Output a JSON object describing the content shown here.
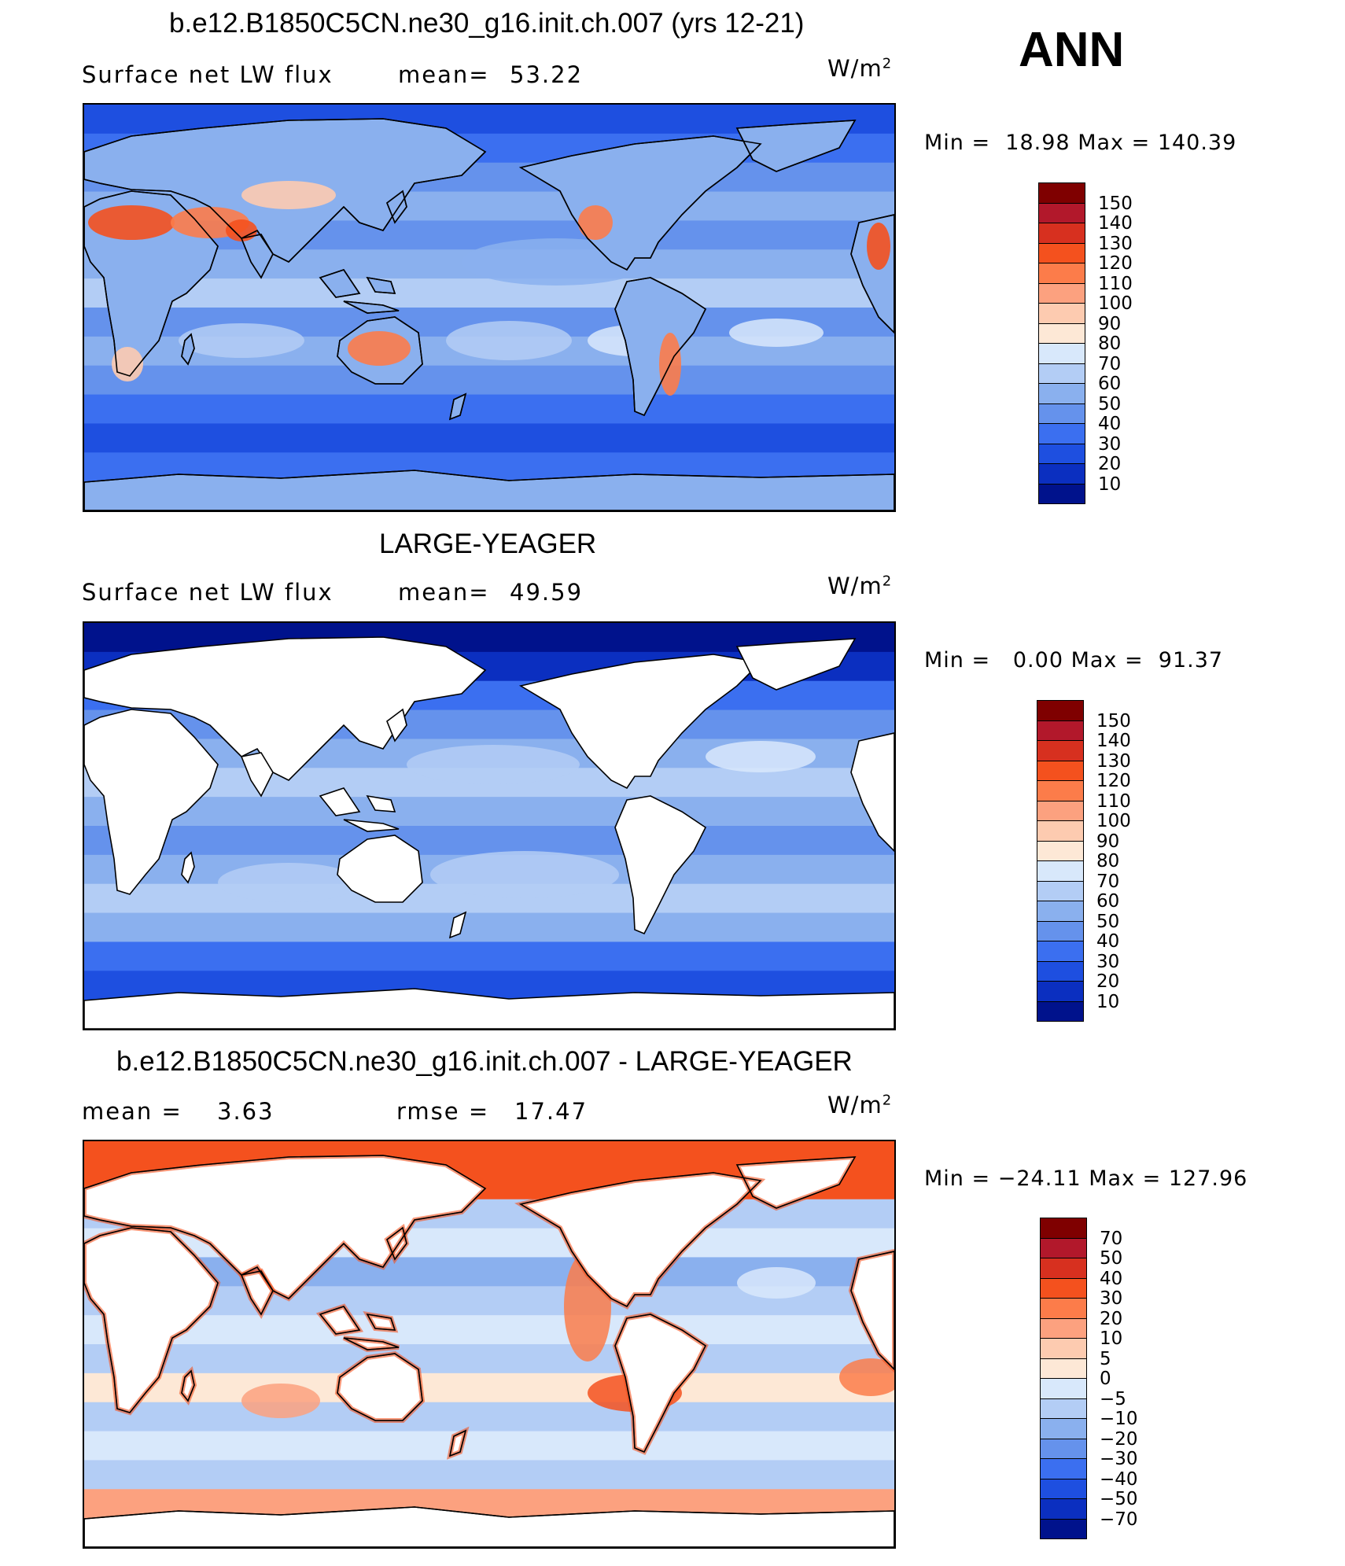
{
  "season": "ANN",
  "panels": [
    {
      "title": "b.e12.B1850C5CN.ne30_g16.init.ch.007 (yrs 12-21)",
      "left_label": "Surface net LW flux",
      "stat_label": "mean=",
      "stat_value": "53.22",
      "units": "W/m",
      "units_sup": "2",
      "min_label": "Min =",
      "min_value": "18.98",
      "max_label": "Max =",
      "max_value": "140.39",
      "colorbar": {
        "labels": [
          "150",
          "140",
          "130",
          "120",
          "110",
          "100",
          "90",
          "80",
          "70",
          "60",
          "50",
          "40",
          "30",
          "20",
          "10"
        ],
        "colors": [
          "#7f0000",
          "#b2182b",
          "#d7301f",
          "#f4511e",
          "#fc7c4a",
          "#fca17f",
          "#fdcbb0",
          "#fde8d6",
          "#d8e8fb",
          "#b3cdf5",
          "#8ab0ee",
          "#6592ec",
          "#3b6ff0",
          "#1e4fe0",
          "#0b2fc0",
          "#00128c"
        ]
      },
      "field": "model"
    },
    {
      "title": "LARGE-YEAGER",
      "left_label": "Surface net LW flux",
      "stat_label": "mean=",
      "stat_value": "49.59",
      "units": "W/m",
      "units_sup": "2",
      "min_label": "Min =",
      "min_value": "0.00",
      "max_label": "Max =",
      "max_value": "91.37",
      "colorbar": {
        "labels": [
          "150",
          "140",
          "130",
          "120",
          "110",
          "100",
          "90",
          "80",
          "70",
          "60",
          "50",
          "40",
          "30",
          "20",
          "10"
        ],
        "colors": [
          "#7f0000",
          "#b2182b",
          "#d7301f",
          "#f4511e",
          "#fc7c4a",
          "#fca17f",
          "#fdcbb0",
          "#fde8d6",
          "#d8e8fb",
          "#b3cdf5",
          "#8ab0ee",
          "#6592ec",
          "#3b6ff0",
          "#1e4fe0",
          "#0b2fc0",
          "#00128c"
        ]
      },
      "field": "obs"
    },
    {
      "title": "b.e12.B1850C5CN.ne30_g16.init.ch.007 - LARGE-YEAGER",
      "left_label": "mean =",
      "left_value": "3.63",
      "stat_label": "rmse =",
      "stat_value": "17.47",
      "units": "W/m",
      "units_sup": "2",
      "min_label": "Min =",
      "min_value": "−24.11",
      "max_label": "Max =",
      "max_value": "127.96",
      "colorbar": {
        "labels": [
          "70",
          "50",
          "40",
          "30",
          "20",
          "10",
          "5",
          "0",
          "−5",
          "−10",
          "−20",
          "−30",
          "−40",
          "−50",
          "−70"
        ],
        "colors": [
          "#7f0000",
          "#b2182b",
          "#d7301f",
          "#f4511e",
          "#fc7c4a",
          "#fca17f",
          "#fdcbb0",
          "#fde8d6",
          "#d8e8fb",
          "#b3cdf5",
          "#8ab0ee",
          "#6592ec",
          "#3b6ff0",
          "#1e4fe0",
          "#0b2fc0",
          "#00128c"
        ]
      },
      "field": "diff"
    }
  ]
}
